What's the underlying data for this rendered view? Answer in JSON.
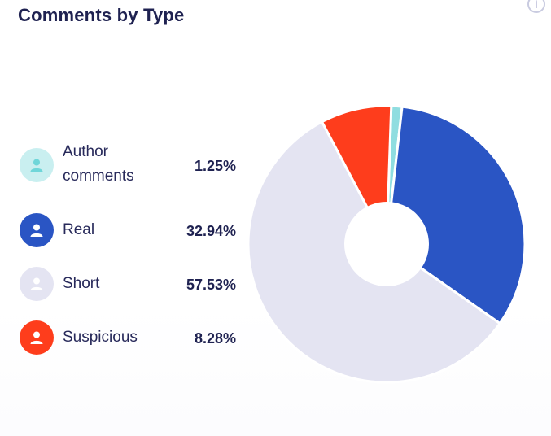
{
  "card": {
    "title": "Comments by Type",
    "info_icon": "info-icon"
  },
  "chart_data": {
    "type": "pie",
    "style": "donut",
    "title": "Comments by Type",
    "categories": [
      "Author comments",
      "Real",
      "Short",
      "Suspicious"
    ],
    "values": [
      1.25,
      32.94,
      57.53,
      8.28
    ],
    "value_labels": [
      "1.25%",
      "32.94%",
      "57.53%",
      "8.28%"
    ],
    "colors": [
      "#8fdde0",
      "#2a55c4",
      "#e4e4f2",
      "#fe3d1c"
    ],
    "legend_placement": "left"
  },
  "legend": {
    "items": [
      {
        "label_lines": [
          "Author",
          "comments"
        ],
        "value": "1.25%",
        "color": "#c9eff0",
        "icon_color": "#6fd6d9",
        "icon": "user-icon"
      },
      {
        "label_lines": [
          "Real"
        ],
        "value": "32.94%",
        "color": "#2a55c4",
        "icon_color": "#ffffff",
        "icon": "user-icon"
      },
      {
        "label_lines": [
          "Short"
        ],
        "value": "57.53%",
        "color": "#e4e4f2",
        "icon_color": "#ffffff",
        "icon": "user-icon"
      },
      {
        "label_lines": [
          "Suspicious"
        ],
        "value": "8.28%",
        "color": "#fe3d1c",
        "icon_color": "#ffffff",
        "icon": "user-icon"
      }
    ]
  }
}
